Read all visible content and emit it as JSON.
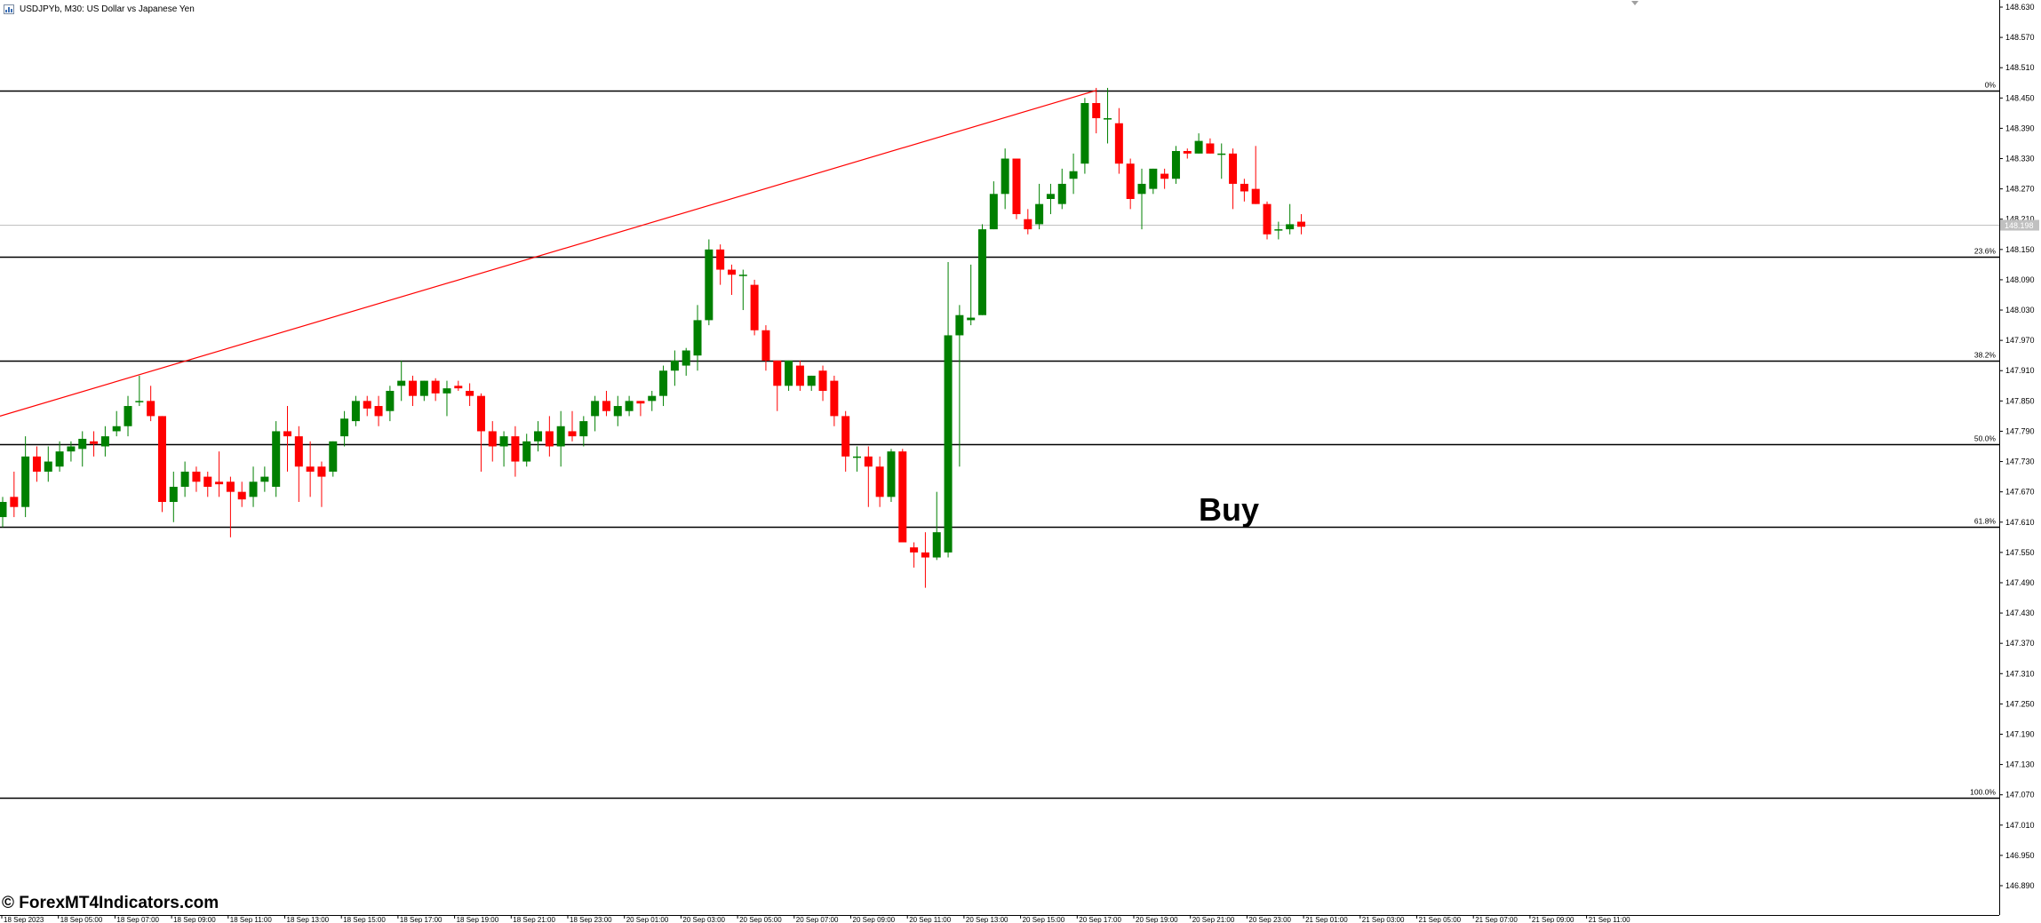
{
  "header": {
    "title": "USDJPYb, M30:  US Dollar vs Japanese Yen"
  },
  "watermark": {
    "text": "© ForexMT4Indicators.com"
  },
  "annotation": {
    "text": "Buy"
  },
  "colors": {
    "bull": "#008000",
    "bear": "#ff0000",
    "level_line": "#000000",
    "trendline": "#ff0000",
    "grid": "#000000",
    "current_price_line": "#c0c0c0"
  },
  "chart_data": {
    "type": "candlestick",
    "symbol": "USDJPYb",
    "timeframe": "M30",
    "title": "US Dollar vs Japanese Yen",
    "ylim": [
      146.85,
      148.62
    ],
    "y_ticks": [
      "148.630",
      "148.570",
      "148.510",
      "148.450",
      "148.390",
      "148.330",
      "148.270",
      "148.210",
      "148.150",
      "148.090",
      "148.030",
      "147.970",
      "147.910",
      "147.850",
      "147.790",
      "147.730",
      "147.670",
      "147.610",
      "147.550",
      "147.490",
      "147.430",
      "147.370",
      "147.310",
      "147.250",
      "147.190",
      "147.130",
      "147.070",
      "147.010",
      "146.950",
      "146.890"
    ],
    "x_ticks": [
      "18 Sep 2023",
      "18 Sep 05:00",
      "18 Sep 07:00",
      "18 Sep 09:00",
      "18 Sep 11:00",
      "18 Sep 13:00",
      "18 Sep 15:00",
      "18 Sep 17:00",
      "18 Sep 19:00",
      "18 Sep 21:00",
      "18 Sep 23:00",
      "20 Sep 01:00",
      "20 Sep 03:00",
      "20 Sep 05:00",
      "20 Sep 07:00",
      "20 Sep 09:00",
      "20 Sep 11:00",
      "20 Sep 13:00",
      "20 Sep 15:00",
      "20 Sep 17:00",
      "20 Sep 19:00",
      "20 Sep 21:00",
      "20 Sep 23:00",
      "21 Sep 01:00",
      "21 Sep 03:00",
      "21 Sep 05:00",
      "21 Sep 07:00",
      "21 Sep 09:00",
      "21 Sep 11:00"
    ],
    "fibonacci_levels": [
      {
        "label": "0%",
        "price": 148.465
      },
      {
        "label": "23.6%",
        "price": 148.135
      },
      {
        "label": "38.2%",
        "price": 147.93
      },
      {
        "label": "50.0%",
        "price": 147.765
      },
      {
        "label": "61.8%",
        "price": 147.6
      },
      {
        "label": "100.0%",
        "price": 147.065
      }
    ],
    "trendline": {
      "start": {
        "bar": 0,
        "price": 147.82
      },
      "end": {
        "bar": 96,
        "price": 148.465
      }
    },
    "current_price": {
      "price": 148.198,
      "label": "148.198"
    },
    "candles": [
      {
        "o": 147.62,
        "h": 147.66,
        "l": 147.6,
        "c": 147.65
      },
      {
        "o": 147.66,
        "h": 147.71,
        "l": 147.62,
        "c": 147.64
      },
      {
        "o": 147.64,
        "h": 147.78,
        "l": 147.62,
        "c": 147.74
      },
      {
        "o": 147.74,
        "h": 147.76,
        "l": 147.69,
        "c": 147.71
      },
      {
        "o": 147.71,
        "h": 147.76,
        "l": 147.69,
        "c": 147.73
      },
      {
        "o": 147.72,
        "h": 147.77,
        "l": 147.71,
        "c": 147.75
      },
      {
        "o": 147.75,
        "h": 147.77,
        "l": 147.73,
        "c": 147.76
      },
      {
        "o": 147.755,
        "h": 147.79,
        "l": 147.72,
        "c": 147.775
      },
      {
        "o": 147.77,
        "h": 147.79,
        "l": 147.74,
        "c": 147.765
      },
      {
        "o": 147.76,
        "h": 147.8,
        "l": 147.74,
        "c": 147.78
      },
      {
        "o": 147.79,
        "h": 147.83,
        "l": 147.78,
        "c": 147.8
      },
      {
        "o": 147.8,
        "h": 147.86,
        "l": 147.78,
        "c": 147.84
      },
      {
        "o": 147.85,
        "h": 147.9,
        "l": 147.84,
        "c": 147.85
      },
      {
        "o": 147.85,
        "h": 147.88,
        "l": 147.81,
        "c": 147.82
      },
      {
        "o": 147.82,
        "h": 147.82,
        "l": 147.63,
        "c": 147.65
      },
      {
        "o": 147.65,
        "h": 147.71,
        "l": 147.61,
        "c": 147.68
      },
      {
        "o": 147.68,
        "h": 147.73,
        "l": 147.66,
        "c": 147.71
      },
      {
        "o": 147.71,
        "h": 147.72,
        "l": 147.67,
        "c": 147.69
      },
      {
        "o": 147.7,
        "h": 147.71,
        "l": 147.66,
        "c": 147.68
      },
      {
        "o": 147.69,
        "h": 147.75,
        "l": 147.66,
        "c": 147.685
      },
      {
        "o": 147.69,
        "h": 147.7,
        "l": 147.58,
        "c": 147.67
      },
      {
        "o": 147.67,
        "h": 147.69,
        "l": 147.64,
        "c": 147.655
      },
      {
        "o": 147.66,
        "h": 147.72,
        "l": 147.64,
        "c": 147.69
      },
      {
        "o": 147.69,
        "h": 147.72,
        "l": 147.67,
        "c": 147.7
      },
      {
        "o": 147.68,
        "h": 147.81,
        "l": 147.66,
        "c": 147.79
      },
      {
        "o": 147.79,
        "h": 147.84,
        "l": 147.71,
        "c": 147.78
      },
      {
        "o": 147.78,
        "h": 147.8,
        "l": 147.65,
        "c": 147.72
      },
      {
        "o": 147.72,
        "h": 147.77,
        "l": 147.66,
        "c": 147.71
      },
      {
        "o": 147.72,
        "h": 147.73,
        "l": 147.64,
        "c": 147.7
      },
      {
        "o": 147.71,
        "h": 147.77,
        "l": 147.7,
        "c": 147.77
      },
      {
        "o": 147.78,
        "h": 147.83,
        "l": 147.76,
        "c": 147.815
      },
      {
        "o": 147.81,
        "h": 147.86,
        "l": 147.8,
        "c": 147.85
      },
      {
        "o": 147.85,
        "h": 147.86,
        "l": 147.82,
        "c": 147.835
      },
      {
        "o": 147.84,
        "h": 147.86,
        "l": 147.8,
        "c": 147.82
      },
      {
        "o": 147.83,
        "h": 147.88,
        "l": 147.81,
        "c": 147.87
      },
      {
        "o": 147.88,
        "h": 147.93,
        "l": 147.85,
        "c": 147.89
      },
      {
        "o": 147.89,
        "h": 147.9,
        "l": 147.84,
        "c": 147.86
      },
      {
        "o": 147.86,
        "h": 147.89,
        "l": 147.85,
        "c": 147.89
      },
      {
        "o": 147.89,
        "h": 147.895,
        "l": 147.85,
        "c": 147.865
      },
      {
        "o": 147.865,
        "h": 147.89,
        "l": 147.82,
        "c": 147.875
      },
      {
        "o": 147.88,
        "h": 147.89,
        "l": 147.87,
        "c": 147.875
      },
      {
        "o": 147.87,
        "h": 147.885,
        "l": 147.84,
        "c": 147.86
      },
      {
        "o": 147.86,
        "h": 147.865,
        "l": 147.71,
        "c": 147.79
      },
      {
        "o": 147.79,
        "h": 147.81,
        "l": 147.73,
        "c": 147.76
      },
      {
        "o": 147.76,
        "h": 147.79,
        "l": 147.72,
        "c": 147.78
      },
      {
        "o": 147.78,
        "h": 147.8,
        "l": 147.7,
        "c": 147.73
      },
      {
        "o": 147.73,
        "h": 147.785,
        "l": 147.72,
        "c": 147.77
      },
      {
        "o": 147.77,
        "h": 147.81,
        "l": 147.75,
        "c": 147.79
      },
      {
        "o": 147.79,
        "h": 147.82,
        "l": 147.74,
        "c": 147.76
      },
      {
        "o": 147.76,
        "h": 147.83,
        "l": 147.72,
        "c": 147.8
      },
      {
        "o": 147.79,
        "h": 147.83,
        "l": 147.77,
        "c": 147.78
      },
      {
        "o": 147.78,
        "h": 147.82,
        "l": 147.76,
        "c": 147.81
      },
      {
        "o": 147.82,
        "h": 147.86,
        "l": 147.79,
        "c": 147.85
      },
      {
        "o": 147.85,
        "h": 147.87,
        "l": 147.82,
        "c": 147.83
      },
      {
        "o": 147.82,
        "h": 147.86,
        "l": 147.8,
        "c": 147.84
      },
      {
        "o": 147.83,
        "h": 147.86,
        "l": 147.82,
        "c": 147.85
      },
      {
        "o": 147.85,
        "h": 147.85,
        "l": 147.82,
        "c": 147.845
      },
      {
        "o": 147.85,
        "h": 147.87,
        "l": 147.83,
        "c": 147.86
      },
      {
        "o": 147.86,
        "h": 147.92,
        "l": 147.84,
        "c": 147.91
      },
      {
        "o": 147.91,
        "h": 147.95,
        "l": 147.88,
        "c": 147.93
      },
      {
        "o": 147.92,
        "h": 147.955,
        "l": 147.9,
        "c": 147.95
      },
      {
        "o": 147.94,
        "h": 148.04,
        "l": 147.91,
        "c": 148.01
      },
      {
        "o": 148.01,
        "h": 148.17,
        "l": 148.0,
        "c": 148.15
      },
      {
        "o": 148.15,
        "h": 148.16,
        "l": 148.08,
        "c": 148.11
      },
      {
        "o": 148.11,
        "h": 148.12,
        "l": 148.06,
        "c": 148.1
      },
      {
        "o": 148.1,
        "h": 148.11,
        "l": 148.03,
        "c": 148.1
      },
      {
        "o": 148.08,
        "h": 148.09,
        "l": 147.98,
        "c": 147.99
      },
      {
        "o": 147.99,
        "h": 148.0,
        "l": 147.91,
        "c": 147.93
      },
      {
        "o": 147.93,
        "h": 147.93,
        "l": 147.83,
        "c": 147.88
      },
      {
        "o": 147.88,
        "h": 147.93,
        "l": 147.87,
        "c": 147.93
      },
      {
        "o": 147.92,
        "h": 147.93,
        "l": 147.87,
        "c": 147.88
      },
      {
        "o": 147.88,
        "h": 147.9,
        "l": 147.87,
        "c": 147.9
      },
      {
        "o": 147.91,
        "h": 147.92,
        "l": 147.85,
        "c": 147.87
      },
      {
        "o": 147.89,
        "h": 147.9,
        "l": 147.8,
        "c": 147.82
      },
      {
        "o": 147.82,
        "h": 147.83,
        "l": 147.71,
        "c": 147.74
      },
      {
        "o": 147.74,
        "h": 147.76,
        "l": 147.71,
        "c": 147.74
      },
      {
        "o": 147.74,
        "h": 147.76,
        "l": 147.64,
        "c": 147.72
      },
      {
        "o": 147.72,
        "h": 147.74,
        "l": 147.64,
        "c": 147.66
      },
      {
        "o": 147.66,
        "h": 147.755,
        "l": 147.65,
        "c": 147.75
      },
      {
        "o": 147.75,
        "h": 147.755,
        "l": 147.57,
        "c": 147.57
      },
      {
        "o": 147.56,
        "h": 147.57,
        "l": 147.52,
        "c": 147.55
      },
      {
        "o": 147.55,
        "h": 147.59,
        "l": 147.48,
        "c": 147.54
      },
      {
        "o": 147.54,
        "h": 147.67,
        "l": 147.535,
        "c": 147.59
      },
      {
        "o": 147.55,
        "h": 148.125,
        "l": 147.54,
        "c": 147.98
      },
      {
        "o": 147.98,
        "h": 148.04,
        "l": 147.72,
        "c": 148.02
      },
      {
        "o": 148.01,
        "h": 148.12,
        "l": 148.0,
        "c": 148.015
      },
      {
        "o": 148.02,
        "h": 148.2,
        "l": 148.02,
        "c": 148.19
      },
      {
        "o": 148.19,
        "h": 148.285,
        "l": 148.19,
        "c": 148.26
      },
      {
        "o": 148.26,
        "h": 148.35,
        "l": 148.23,
        "c": 148.33
      },
      {
        "o": 148.33,
        "h": 148.33,
        "l": 148.21,
        "c": 148.22
      },
      {
        "o": 148.21,
        "h": 148.23,
        "l": 148.18,
        "c": 148.19
      },
      {
        "o": 148.2,
        "h": 148.28,
        "l": 148.19,
        "c": 148.24
      },
      {
        "o": 148.25,
        "h": 148.28,
        "l": 148.22,
        "c": 148.26
      },
      {
        "o": 148.24,
        "h": 148.31,
        "l": 148.23,
        "c": 148.28
      },
      {
        "o": 148.29,
        "h": 148.34,
        "l": 148.26,
        "c": 148.305
      },
      {
        "o": 148.32,
        "h": 148.45,
        "l": 148.3,
        "c": 148.44
      },
      {
        "o": 148.44,
        "h": 148.47,
        "l": 148.38,
        "c": 148.41
      },
      {
        "o": 148.41,
        "h": 148.47,
        "l": 148.36,
        "c": 148.41
      },
      {
        "o": 148.4,
        "h": 148.43,
        "l": 148.3,
        "c": 148.32
      },
      {
        "o": 148.32,
        "h": 148.33,
        "l": 148.23,
        "c": 148.25
      },
      {
        "o": 148.26,
        "h": 148.31,
        "l": 148.19,
        "c": 148.28
      },
      {
        "o": 148.27,
        "h": 148.31,
        "l": 148.26,
        "c": 148.31
      },
      {
        "o": 148.3,
        "h": 148.31,
        "l": 148.27,
        "c": 148.29
      },
      {
        "o": 148.29,
        "h": 148.355,
        "l": 148.28,
        "c": 148.345
      },
      {
        "o": 148.345,
        "h": 148.35,
        "l": 148.33,
        "c": 148.34
      },
      {
        "o": 148.34,
        "h": 148.38,
        "l": 148.34,
        "c": 148.365
      },
      {
        "o": 148.36,
        "h": 148.37,
        "l": 148.34,
        "c": 148.34
      },
      {
        "o": 148.34,
        "h": 148.36,
        "l": 148.29,
        "c": 148.34
      },
      {
        "o": 148.34,
        "h": 148.35,
        "l": 148.23,
        "c": 148.28
      },
      {
        "o": 148.28,
        "h": 148.29,
        "l": 148.245,
        "c": 148.265
      },
      {
        "o": 148.27,
        "h": 148.355,
        "l": 148.24,
        "c": 148.24
      },
      {
        "o": 148.24,
        "h": 148.245,
        "l": 148.17,
        "c": 148.18
      },
      {
        "o": 148.19,
        "h": 148.205,
        "l": 148.17,
        "c": 148.19
      },
      {
        "o": 148.19,
        "h": 148.24,
        "l": 148.18,
        "c": 148.2
      },
      {
        "o": 148.205,
        "h": 148.22,
        "l": 148.18,
        "c": 148.195
      }
    ]
  }
}
